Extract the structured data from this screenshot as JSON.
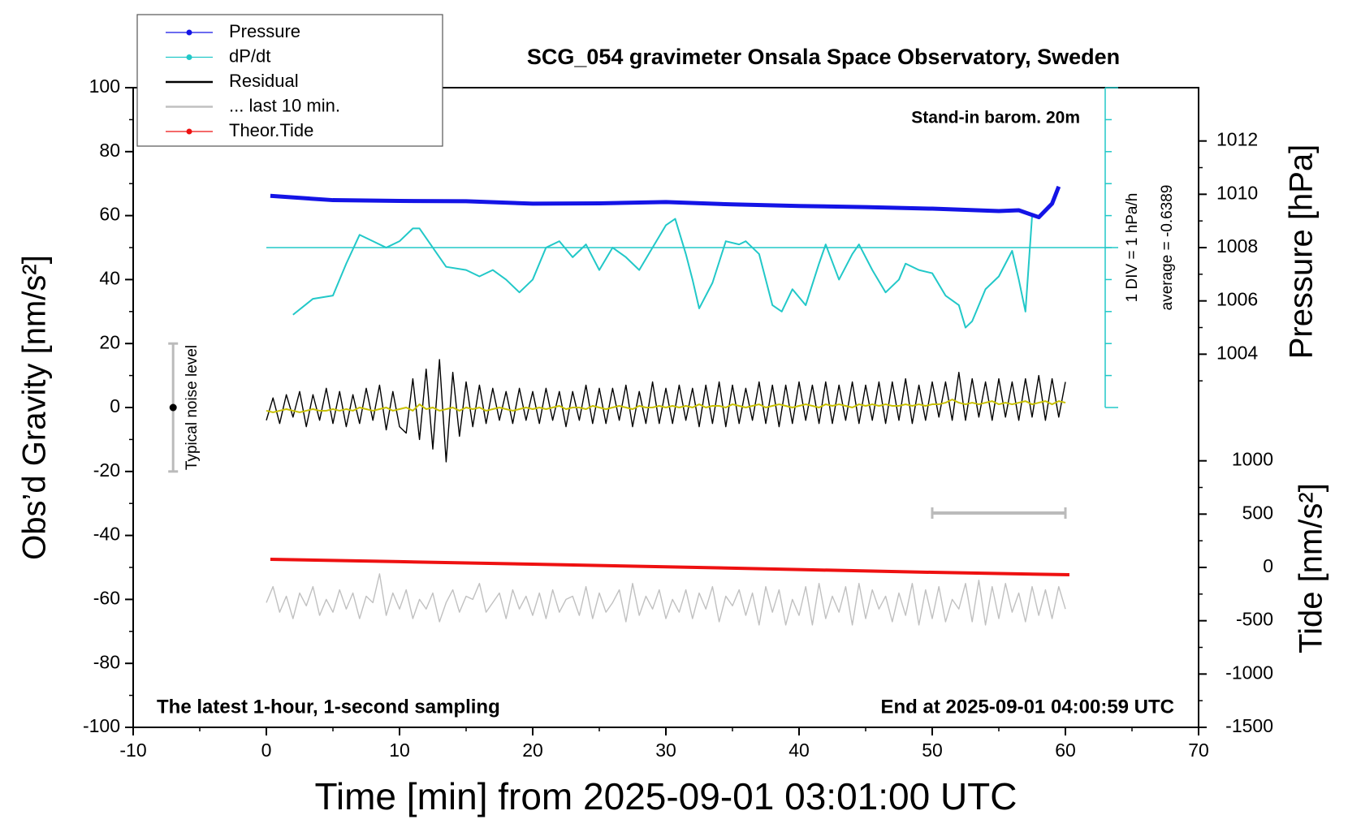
{
  "chart_data": {
    "type": "line",
    "title": "SCG_054 gravimeter Onsala Space Observatory, Sweden",
    "subtitle": "Stand-in barom. 20m",
    "note_left": "The latest 1-hour, 1-second sampling",
    "note_right": "End at 2025-09-01 04:00:59 UTC",
    "xlabel": "Time [min] from 2025-09-01 03:01:00 UTC",
    "ylabel": "Obs’d Gravity [nm/s²]",
    "y2label": "Pressure [hPa]",
    "y3label": "Tide [nm/s²]",
    "xlim": [
      -10,
      70
    ],
    "xticks": [
      -10,
      0,
      10,
      20,
      30,
      40,
      50,
      60,
      70
    ],
    "ylim": [
      -100,
      100
    ],
    "yticks": [
      -100,
      -80,
      -60,
      -40,
      -20,
      0,
      20,
      40,
      60,
      80,
      100
    ],
    "y2lim": [
      1002,
      1014
    ],
    "y2ticks": [
      1004,
      1006,
      1008,
      1010,
      1012
    ],
    "y3lim": [
      -1500,
      1500
    ],
    "y3ticks": [
      -1500,
      -1000,
      -500,
      0,
      500,
      1000
    ],
    "dpdt_div": {
      "value": 1,
      "label": "1 DIV = 1 hPa/h"
    },
    "dpdt_average": {
      "value": -0.6389,
      "label": "average = -0.6389"
    },
    "noise_level": {
      "label": "Typical noise level",
      "x": -7,
      "value": 0,
      "error": 20
    },
    "scale_bar": {
      "x": [
        50,
        60
      ],
      "y": -33
    },
    "x": [
      0,
      0.5,
      1,
      1.5,
      2,
      2.5,
      3,
      3.5,
      4,
      4.5,
      5,
      5.5,
      6,
      6.5,
      7,
      7.5,
      8,
      8.5,
      9,
      9.5,
      10,
      10.5,
      11,
      11.5,
      12,
      12.5,
      13,
      13.5,
      14,
      14.5,
      15,
      15.5,
      16,
      16.5,
      17,
      17.5,
      18,
      18.5,
      19,
      19.5,
      20,
      20.5,
      21,
      21.5,
      22,
      22.5,
      23,
      23.5,
      24,
      24.5,
      25,
      25.5,
      26,
      26.5,
      27,
      27.5,
      28,
      28.5,
      29,
      29.5,
      30,
      30.5,
      31,
      31.5,
      32,
      32.5,
      33,
      33.5,
      34,
      34.5,
      35,
      35.5,
      36,
      36.5,
      37,
      37.5,
      38,
      38.5,
      39,
      39.5,
      40,
      40.5,
      41,
      41.5,
      42,
      42.5,
      43,
      43.5,
      44,
      44.5,
      45,
      45.5,
      46,
      46.5,
      47,
      47.5,
      48,
      48.5,
      49,
      49.5,
      50,
      50.5,
      51,
      51.5,
      52,
      52.5,
      53,
      53.5,
      54,
      54.5,
      55,
      55.5,
      56,
      56.5,
      57,
      57.5,
      58,
      58.5,
      59,
      59.5,
      60
    ],
    "series": [
      {
        "name": "Pressure",
        "color": "#1414e6",
        "axis": "y2",
        "marker": true,
        "x": [
          0.3,
          5,
          10,
          15,
          20,
          25,
          30,
          35,
          40,
          45,
          50,
          55,
          56.5,
          58,
          59,
          59.5
        ],
        "values": [
          1009.94,
          1009.78,
          1009.75,
          1009.74,
          1009.65,
          1009.66,
          1009.71,
          1009.62,
          1009.56,
          1009.52,
          1009.46,
          1009.37,
          1009.4,
          1009.14,
          1009.65,
          1010.29
        ]
      },
      {
        "name": "dP/dt",
        "color": "#22c8c8",
        "axis": "dpdt",
        "marker": true,
        "x": [
          2,
          3.5,
          5,
          6,
          7,
          8,
          9,
          10,
          11,
          11.5,
          12.5,
          13.5,
          15,
          16,
          17,
          18,
          19,
          20,
          21,
          22,
          23,
          24,
          25,
          26,
          27,
          28,
          29,
          30,
          30.7,
          31.5,
          32,
          32.5,
          33.5,
          34.5,
          35.5,
          36,
          37,
          38,
          38.7,
          39.5,
          40.5,
          41.5,
          42,
          43,
          44,
          44.5,
          45.5,
          46.5,
          47.5,
          48,
          49,
          50,
          51,
          52,
          52.5,
          53,
          54,
          55,
          56,
          56.5,
          57,
          57.5
        ],
        "values": [
          -2.74,
          -2.24,
          -2.14,
          -1.14,
          -0.24,
          -0.44,
          -0.64,
          -0.44,
          -0.04,
          -0.04,
          -0.64,
          -1.24,
          -1.34,
          -1.54,
          -1.34,
          -1.64,
          -2.04,
          -1.64,
          -0.64,
          -0.44,
          -0.94,
          -0.54,
          -1.34,
          -0.64,
          -0.94,
          -1.34,
          -0.64,
          0.06,
          0.26,
          -0.84,
          -1.64,
          -2.54,
          -1.74,
          -0.44,
          -0.54,
          -0.44,
          -0.84,
          -2.44,
          -2.64,
          -1.94,
          -2.44,
          -1.14,
          -0.54,
          -1.64,
          -0.84,
          -0.54,
          -1.34,
          -2.04,
          -1.64,
          -1.14,
          -1.34,
          -1.44,
          -2.14,
          -2.44,
          -3.14,
          -2.94,
          -1.94,
          -1.54,
          -0.74,
          -1.64,
          -2.64,
          0.36
        ]
      },
      {
        "name": "Residual",
        "color": "#000000",
        "axis": "y",
        "values": [
          -4,
          3,
          -5,
          4,
          -3,
          5,
          -6,
          4,
          -4,
          6,
          -5,
          5,
          -6,
          4,
          -5,
          6,
          -4,
          7,
          -7,
          5,
          -6,
          -8,
          9,
          -10,
          12,
          -13,
          15,
          -17,
          11,
          -9,
          8,
          -6,
          7,
          -5,
          6,
          -4,
          5,
          -5,
          6,
          -4,
          5,
          -5,
          6,
          -4,
          5,
          -6,
          5,
          -4,
          7,
          -5,
          6,
          -5,
          6,
          -4,
          7,
          -6,
          5,
          -5,
          8,
          -5,
          6,
          -5,
          7,
          -4,
          6,
          -6,
          7,
          -5,
          8,
          -6,
          7,
          -5,
          6,
          -4,
          8,
          -5,
          7,
          -6,
          7,
          -5,
          8,
          -4,
          7,
          -5,
          8,
          -5,
          7,
          -4,
          8,
          -5,
          7,
          -4,
          8,
          -5,
          8,
          -4,
          9,
          -5,
          7,
          -4,
          8,
          -3,
          8,
          -4,
          11,
          -4,
          9,
          -3,
          8,
          -4,
          9,
          -3,
          8,
          -4,
          9,
          -3,
          10,
          -4,
          9,
          -3,
          8
        ]
      },
      {
        "name": "... last 10 min.",
        "color": "#c0c0c0",
        "axis": "y",
        "values": [
          -61,
          -56,
          -64,
          -59,
          -66,
          -58,
          -62,
          -56,
          -65,
          -60,
          -64,
          -57,
          -63,
          -58,
          -66,
          -59,
          -61,
          -52,
          -65,
          -58,
          -63,
          -57,
          -66,
          -60,
          -63,
          -58,
          -67,
          -61,
          -57,
          -64,
          -59,
          -60,
          -55,
          -64,
          -61,
          -58,
          -66,
          -57,
          -63,
          -59,
          -65,
          -58,
          -66,
          -57,
          -64,
          -60,
          -59,
          -65,
          -56,
          -66,
          -58,
          -64,
          -61,
          -57,
          -67,
          -55,
          -65,
          -59,
          -63,
          -57,
          -66,
          -60,
          -64,
          -57,
          -66,
          -58,
          -63,
          -56,
          -67,
          -59,
          -62,
          -57,
          -65,
          -58,
          -68,
          -56,
          -64,
          -57,
          -68,
          -60,
          -65,
          -56,
          -68,
          -55,
          -66,
          -59,
          -64,
          -56,
          -68,
          -55,
          -66,
          -57,
          -63,
          -59,
          -67,
          -58,
          -65,
          -55,
          -68,
          -57,
          -66,
          -56,
          -67,
          -60,
          -63,
          -55,
          -67,
          -54,
          -68,
          -56,
          -66,
          -55,
          -64,
          -58,
          -67,
          -56,
          -65,
          -57,
          -66,
          -56,
          -63
        ]
      },
      {
        "name": "Theor.Tide",
        "color": "#ee1111",
        "axis": "y3",
        "marker": true,
        "x": [
          0.3,
          10,
          20,
          30,
          40,
          50,
          60.3
        ],
        "values": [
          76,
          54,
          30,
          6,
          -20,
          -46,
          -69
        ]
      },
      {
        "color": "#c8c000",
        "axis": "y",
        "values": [
          -1,
          -1.5,
          -1,
          -0.5,
          -1,
          -1.5,
          -1,
          -0.5,
          -1,
          -1,
          -0.5,
          -1,
          -0.5,
          -1,
          0,
          -0.5,
          -1,
          -0.5,
          0,
          -1,
          -0.5,
          0,
          -1,
          1,
          -0.5,
          0,
          -1,
          -0.5,
          0,
          -1,
          0,
          -0.5,
          0,
          -1,
          -0.5,
          0,
          -0.5,
          -1,
          -0.5,
          0,
          -0.5,
          0,
          -0.5,
          0,
          0.5,
          -0.5,
          0,
          0,
          -0.5,
          0.5,
          0,
          -0.5,
          0,
          0.5,
          0,
          -0.5,
          0.5,
          0,
          0,
          0.5,
          0,
          0.5,
          0,
          0.5,
          0,
          1,
          0,
          0.5,
          0.5,
          0,
          1,
          0.5,
          0,
          0.5,
          1,
          0,
          0.5,
          1,
          0.5,
          0,
          0.5,
          1,
          0.5,
          0,
          1,
          0.5,
          1,
          0.5,
          0,
          1,
          0.5,
          1,
          0.5,
          1,
          0.5,
          0.5,
          1,
          0.5,
          1,
          0.5,
          1,
          1,
          1.5,
          2.5,
          1.5,
          1,
          1.5,
          1,
          1.5,
          2,
          1,
          1.5,
          1,
          1.5,
          2,
          1,
          1.5,
          2,
          1,
          2,
          1.5
        ]
      }
    ]
  }
}
